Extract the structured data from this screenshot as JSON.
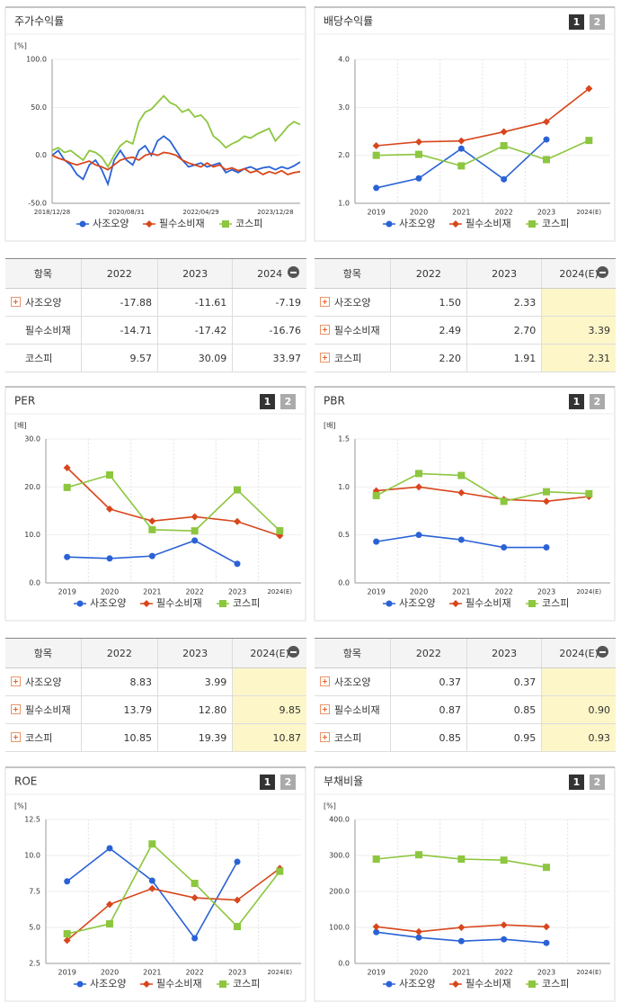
{
  "chart_data": [
    {
      "type": "line",
      "title": "주가수익률",
      "unit": "[%]",
      "categories": [
        "2018/12/28",
        null,
        null,
        null,
        null,
        null,
        null,
        null,
        null,
        null,
        null,
        null,
        "2020/08/31",
        null,
        null,
        null,
        null,
        null,
        null,
        null,
        null,
        null,
        null,
        null,
        "2022/04/29",
        null,
        null,
        null,
        null,
        null,
        null,
        null,
        null,
        null,
        null,
        null,
        "2023/12/28",
        null,
        null,
        null,
        null
      ],
      "ylim": [
        -50,
        100
      ],
      "yticks": [
        {
          "value": -50,
          "label": "-50.0"
        },
        {
          "value": 0,
          "label": "0.0"
        },
        {
          "value": 50,
          "label": "50.0"
        },
        {
          "value": 100,
          "label": "100.0"
        }
      ],
      "grid": true,
      "markers": false,
      "series": [
        {
          "name": "사조오양",
          "color": "#2a62d6",
          "marker": "circle",
          "values": [
            0,
            5,
            -5,
            -10,
            -20,
            -25,
            -10,
            -5,
            -15,
            -30,
            -5,
            5,
            -5,
            -10,
            5,
            10,
            0,
            15,
            20,
            15,
            5,
            -5,
            -12,
            -10,
            -8,
            -12,
            -10,
            -8,
            -18,
            -15,
            -18,
            -14,
            -12,
            -15,
            -13,
            -12,
            -15,
            -12,
            -14,
            -11,
            -7
          ]
        },
        {
          "name": "필수소비재",
          "color": "#d8461b",
          "marker": "diamond",
          "values": [
            0,
            -3,
            -5,
            -8,
            -10,
            -8,
            -6,
            -10,
            -12,
            -15,
            -10,
            -5,
            -3,
            -2,
            -5,
            0,
            2,
            0,
            3,
            2,
            0,
            -5,
            -8,
            -10,
            -12,
            -8,
            -12,
            -10,
            -15,
            -13,
            -16,
            -14,
            -18,
            -16,
            -20,
            -17,
            -19,
            -16,
            -20,
            -18,
            -17
          ]
        },
        {
          "name": "코스피",
          "color": "#8dc63f",
          "marker": "square",
          "values": [
            5,
            8,
            3,
            5,
            0,
            -5,
            5,
            3,
            -2,
            -12,
            0,
            10,
            15,
            12,
            35,
            45,
            48,
            55,
            62,
            55,
            52,
            45,
            48,
            40,
            42,
            35,
            20,
            15,
            8,
            12,
            15,
            20,
            18,
            22,
            25,
            28,
            15,
            22,
            30,
            35,
            32
          ]
        }
      ]
    },
    {
      "type": "line",
      "title": "배당수익률",
      "unit": null,
      "buttons": [
        "1",
        "2"
      ],
      "categories": [
        "2019",
        "2020",
        "2021",
        "2022",
        "2023",
        "2024(E)"
      ],
      "ylim": [
        1,
        4
      ],
      "yticks": [
        {
          "value": 1,
          "label": "1.0"
        },
        {
          "value": 2,
          "label": "2.0"
        },
        {
          "value": 3,
          "label": "3.0"
        },
        {
          "value": 4,
          "label": "4.0"
        }
      ],
      "grid": true,
      "markers": true,
      "series": [
        {
          "name": "사조오양",
          "color": "#2a62d6",
          "marker": "circle",
          "values": [
            1.32,
            1.52,
            2.14,
            1.5,
            2.33,
            null
          ]
        },
        {
          "name": "필수소비재",
          "color": "#d8461b",
          "marker": "diamond",
          "values": [
            2.2,
            2.28,
            2.3,
            2.49,
            2.7,
            3.39
          ]
        },
        {
          "name": "코스피",
          "color": "#8dc63f",
          "marker": "square",
          "values": [
            2.0,
            2.02,
            1.78,
            2.2,
            1.91,
            2.31
          ]
        }
      ]
    },
    {
      "type": "line",
      "title": "PER",
      "unit": "[배]",
      "buttons": [
        "1",
        "2"
      ],
      "categories": [
        "2019",
        "2020",
        "2021",
        "2022",
        "2023",
        "2024(E)"
      ],
      "ylim": [
        0,
        30
      ],
      "yticks": [
        {
          "value": 0,
          "label": "0.0"
        },
        {
          "value": 10,
          "label": "10.0"
        },
        {
          "value": 20,
          "label": "20.0"
        },
        {
          "value": 30,
          "label": "30.0"
        }
      ],
      "grid": true,
      "markers": true,
      "series": [
        {
          "name": "사조오양",
          "color": "#2a62d6",
          "marker": "circle",
          "values": [
            5.4,
            5.1,
            5.6,
            8.83,
            3.99,
            null
          ]
        },
        {
          "name": "필수소비재",
          "color": "#d8461b",
          "marker": "diamond",
          "values": [
            24,
            15.4,
            12.9,
            13.79,
            12.8,
            9.85
          ]
        },
        {
          "name": "코스피",
          "color": "#8dc63f",
          "marker": "square",
          "values": [
            19.9,
            22.5,
            11.1,
            10.85,
            19.39,
            10.87
          ]
        }
      ]
    },
    {
      "type": "line",
      "title": "PBR",
      "unit": "[배]",
      "buttons": [
        "1",
        "2"
      ],
      "categories": [
        "2019",
        "2020",
        "2021",
        "2022",
        "2023",
        "2024(E)"
      ],
      "ylim": [
        0,
        1.5
      ],
      "yticks": [
        {
          "value": 0,
          "label": "0.0"
        },
        {
          "value": 0.5,
          "label": "0.5"
        },
        {
          "value": 1,
          "label": "1.0"
        },
        {
          "value": 1.5,
          "label": "1.5"
        }
      ],
      "grid": true,
      "markers": true,
      "series": [
        {
          "name": "사조오양",
          "color": "#2a62d6",
          "marker": "circle",
          "values": [
            0.43,
            0.5,
            0.45,
            0.37,
            0.37,
            null
          ]
        },
        {
          "name": "필수소비재",
          "color": "#d8461b",
          "marker": "diamond",
          "values": [
            0.96,
            1.0,
            0.94,
            0.87,
            0.85,
            0.9
          ]
        },
        {
          "name": "코스피",
          "color": "#8dc63f",
          "marker": "square",
          "values": [
            0.91,
            1.14,
            1.12,
            0.85,
            0.95,
            0.93
          ]
        }
      ]
    },
    {
      "type": "line",
      "title": "ROE",
      "unit": "[%]",
      "buttons": [
        "1",
        "2"
      ],
      "categories": [
        "2019",
        "2020",
        "2021",
        "2022",
        "2023",
        "2024(E)"
      ],
      "ylim": [
        2.5,
        12.5
      ],
      "yticks": [
        {
          "value": 2.5,
          "label": "2.5"
        },
        {
          "value": 5,
          "label": "5.0"
        },
        {
          "value": 7.5,
          "label": "7.5"
        },
        {
          "value": 10,
          "label": "10.0"
        },
        {
          "value": 12.5,
          "label": "12.5"
        }
      ],
      "grid": true,
      "markers": true,
      "series": [
        {
          "name": "사조오양",
          "color": "#2a62d6",
          "marker": "circle",
          "values": [
            8.2,
            10.5,
            8.25,
            4.25,
            9.56,
            null
          ]
        },
        {
          "name": "필수소비재",
          "color": "#d8461b",
          "marker": "diamond",
          "values": [
            4.1,
            6.6,
            7.7,
            7.06,
            6.9,
            9.1
          ]
        },
        {
          "name": "코스피",
          "color": "#8dc63f",
          "marker": "square",
          "values": [
            4.56,
            5.25,
            10.8,
            8.06,
            5.06,
            8.9
          ]
        }
      ]
    },
    {
      "type": "line",
      "title": "부채비율",
      "unit": "[%]",
      "buttons": [
        "1",
        "2"
      ],
      "categories": [
        "2019",
        "2020",
        "2021",
        "2022",
        "2023",
        "2024(E)"
      ],
      "ylim": [
        0,
        400
      ],
      "yticks": [
        {
          "value": 0,
          "label": "0.0"
        },
        {
          "value": 100,
          "label": "100.0"
        },
        {
          "value": 200,
          "label": "200.0"
        },
        {
          "value": 300,
          "label": "300.0"
        },
        {
          "value": 400,
          "label": "400.0"
        }
      ],
      "grid": true,
      "markers": true,
      "series": [
        {
          "name": "사조오양",
          "color": "#2a62d6",
          "marker": "circle",
          "values": [
            87,
            72,
            62,
            67,
            57,
            null
          ]
        },
        {
          "name": "필수소비재",
          "color": "#d8461b",
          "marker": "diamond",
          "values": [
            102,
            88,
            100,
            107,
            102,
            null
          ]
        },
        {
          "name": "코스피",
          "color": "#8dc63f",
          "marker": "square",
          "values": [
            290,
            302,
            290,
            287,
            267,
            null
          ]
        }
      ]
    }
  ],
  "tables": [
    {
      "columns": [
        "항목",
        "2022",
        "2023",
        "2024"
      ],
      "highlight_last": false,
      "rows": [
        {
          "label": "사조오양",
          "expandable": true,
          "values": [
            "-17.88",
            "-11.61",
            "-7.19"
          ]
        },
        {
          "label": "필수소비재",
          "expandable": false,
          "values": [
            "-14.71",
            "-17.42",
            "-16.76"
          ]
        },
        {
          "label": "코스피",
          "expandable": false,
          "values": [
            "9.57",
            "30.09",
            "33.97"
          ]
        }
      ]
    },
    {
      "columns": [
        "항목",
        "2022",
        "2023",
        "2024(E)"
      ],
      "highlight_last": true,
      "rows": [
        {
          "label": "사조오양",
          "expandable": true,
          "values": [
            "1.50",
            "2.33",
            null
          ]
        },
        {
          "label": "필수소비재",
          "expandable": true,
          "values": [
            "2.49",
            "2.70",
            "3.39"
          ]
        },
        {
          "label": "코스피",
          "expandable": true,
          "values": [
            "2.20",
            "1.91",
            "2.31"
          ]
        }
      ]
    },
    {
      "columns": [
        "항목",
        "2022",
        "2023",
        "2024(E)"
      ],
      "highlight_last": true,
      "rows": [
        {
          "label": "사조오양",
          "expandable": true,
          "values": [
            "8.83",
            "3.99",
            null
          ]
        },
        {
          "label": "필수소비재",
          "expandable": true,
          "values": [
            "13.79",
            "12.80",
            "9.85"
          ]
        },
        {
          "label": "코스피",
          "expandable": true,
          "values": [
            "10.85",
            "19.39",
            "10.87"
          ]
        }
      ]
    },
    {
      "columns": [
        "항목",
        "2022",
        "2023",
        "2024(E)"
      ],
      "highlight_last": true,
      "rows": [
        {
          "label": "사조오양",
          "expandable": true,
          "values": [
            "0.37",
            "0.37",
            null
          ]
        },
        {
          "label": "필수소비재",
          "expandable": true,
          "values": [
            "0.87",
            "0.85",
            "0.90"
          ]
        },
        {
          "label": "코스피",
          "expandable": true,
          "values": [
            "0.85",
            "0.95",
            "0.93"
          ]
        }
      ]
    }
  ]
}
